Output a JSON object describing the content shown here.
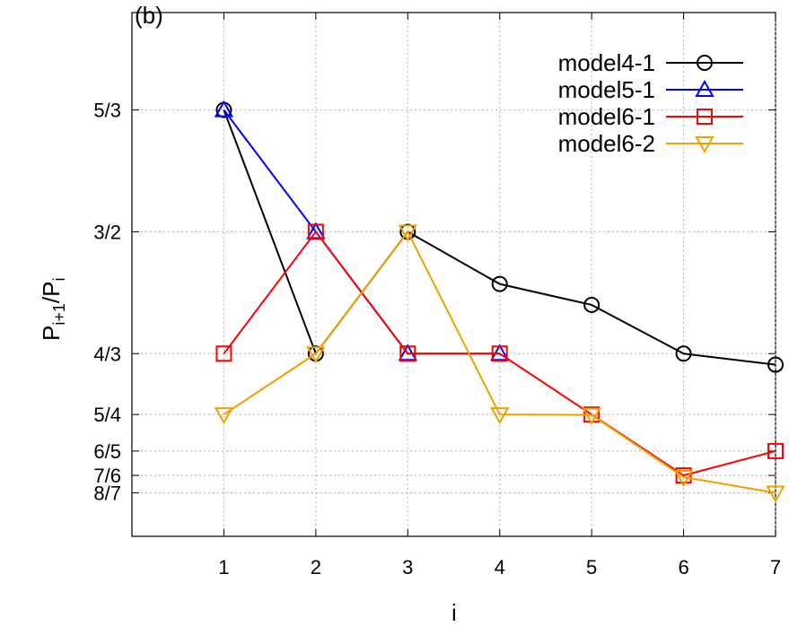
{
  "panel_label": "(b)",
  "chart_data": {
    "type": "line",
    "title": "",
    "panel": "(b)",
    "xlabel": "i",
    "ylabel": {
      "base": "P",
      "sub1": "i+1",
      "sep": "/P",
      "sub2": "i"
    },
    "xlim": [
      0,
      7
    ],
    "ylim": [
      1.0833,
      1.8
    ],
    "x_ticks": [
      1,
      2,
      3,
      4,
      5,
      6,
      7
    ],
    "y_ticks": [
      {
        "value": 1.666667,
        "label": "5/3"
      },
      {
        "value": 1.5,
        "label": "3/2"
      },
      {
        "value": 1.333333,
        "label": "4/3"
      },
      {
        "value": 1.25,
        "label": "5/4"
      },
      {
        "value": 1.2,
        "label": "6/5"
      },
      {
        "value": 1.166667,
        "label": "7/6"
      },
      {
        "value": 1.142857,
        "label": "8/7"
      }
    ],
    "grid": true,
    "legend_position": "top-right",
    "series": [
      {
        "name": "model4-1",
        "color": "#000000",
        "marker": "circle",
        "x": [
          1,
          2,
          3,
          4,
          5,
          6,
          7
        ],
        "y": [
          1.666667,
          1.333333,
          1.5,
          1.4286,
          1.4,
          1.3333,
          1.3182
        ]
      },
      {
        "name": "model5-1",
        "color": "#0000ff",
        "marker": "triangle-up",
        "x": [
          1,
          2,
          3,
          4
        ],
        "y": [
          1.666667,
          1.5,
          1.333333,
          1.333333
        ]
      },
      {
        "name": "model6-1",
        "color": "#ff0000",
        "marker": "square",
        "x": [
          1,
          2,
          3,
          4,
          5,
          6,
          7
        ],
        "y": [
          1.333333,
          1.5,
          1.333333,
          1.333333,
          1.25,
          1.166667,
          1.2
        ]
      },
      {
        "name": "model6-2",
        "color": "#f0a000",
        "marker": "triangle-down",
        "x": [
          1,
          2,
          3,
          4,
          5,
          6,
          7
        ],
        "y": [
          1.25,
          1.333333,
          1.5,
          1.25,
          1.2494,
          1.1643,
          1.142857
        ]
      }
    ]
  }
}
